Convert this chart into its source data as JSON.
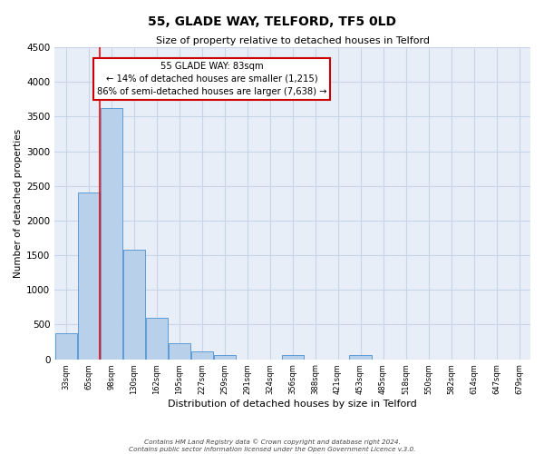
{
  "title": "55, GLADE WAY, TELFORD, TF5 0LD",
  "subtitle": "Size of property relative to detached houses in Telford",
  "xlabel": "Distribution of detached houses by size in Telford",
  "ylabel": "Number of detached properties",
  "categories": [
    "33sqm",
    "65sqm",
    "98sqm",
    "130sqm",
    "162sqm",
    "195sqm",
    "227sqm",
    "259sqm",
    "291sqm",
    "324sqm",
    "356sqm",
    "388sqm",
    "421sqm",
    "453sqm",
    "485sqm",
    "518sqm",
    "550sqm",
    "582sqm",
    "614sqm",
    "647sqm",
    "679sqm"
  ],
  "values": [
    380,
    2400,
    3620,
    1580,
    600,
    230,
    110,
    60,
    0,
    0,
    60,
    0,
    0,
    60,
    0,
    0,
    0,
    0,
    0,
    0,
    0
  ],
  "bar_color": "#b8d0ea",
  "bar_edge_color": "#5b9bd5",
  "red_line_index": 1.5,
  "annotation_title": "55 GLADE WAY: 83sqm",
  "annotation_line1": "← 14% of detached houses are smaller (1,215)",
  "annotation_line2": "86% of semi-detached houses are larger (7,638) →",
  "annotation_box_color": "#ffffff",
  "annotation_box_edge": "#cc0000",
  "ylim": [
    0,
    4500
  ],
  "yticks": [
    0,
    500,
    1000,
    1500,
    2000,
    2500,
    3000,
    3500,
    4000,
    4500
  ],
  "grid_color": "#c8d4e8",
  "bg_color": "#e8eef8",
  "footer1": "Contains HM Land Registry data © Crown copyright and database right 2024.",
  "footer2": "Contains public sector information licensed under the Open Government Licence v.3.0."
}
